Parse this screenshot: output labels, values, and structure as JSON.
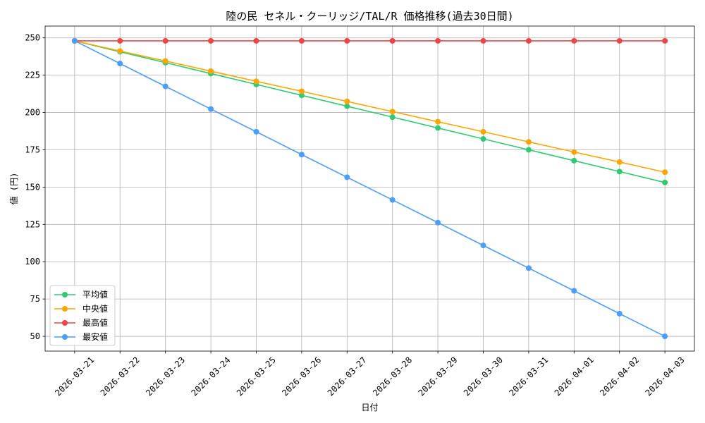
{
  "chart_data": {
    "type": "line",
    "title": "陸の民 セネル・クーリッジ/TAL/R 価格推移(過去30日間)",
    "xlabel": "日付",
    "ylabel": "値 (円)",
    "categories": [
      "2026-03-21",
      "2026-03-22",
      "2026-03-23",
      "2026-03-24",
      "2026-03-25",
      "2026-03-26",
      "2026-03-27",
      "2026-03-28",
      "2026-03-29",
      "2026-03-30",
      "2026-03-31",
      "2026-04-01",
      "2026-04-02",
      "2026-04-03"
    ],
    "yticks": [
      50,
      75,
      100,
      125,
      150,
      175,
      200,
      225,
      250
    ],
    "ylim": [
      40.1,
      257.9
    ],
    "grid": true,
    "legend_position": "lower-left",
    "series": [
      {
        "name": "平均値",
        "color": "#2ecc71",
        "values": [
          248,
          240.7,
          233.4,
          226.1,
          218.8,
          211.5,
          204.2,
          196.9,
          189.6,
          182.3,
          175.0,
          167.7,
          160.4,
          153.1
        ]
      },
      {
        "name": "中央値",
        "color": "#ffa500",
        "values": [
          248,
          241.2,
          234.5,
          227.7,
          220.9,
          214.2,
          207.4,
          200.6,
          193.8,
          187.1,
          180.3,
          173.5,
          166.8,
          160.0
        ]
      },
      {
        "name": "最高値",
        "color": "#ef4444",
        "values": [
          248,
          248,
          248,
          248,
          248,
          248,
          248,
          248,
          248,
          248,
          248,
          248,
          248,
          248
        ]
      },
      {
        "name": "最安値",
        "color": "#4a9eff",
        "values": [
          248,
          232.8,
          217.5,
          202.3,
          187.1,
          171.8,
          156.6,
          141.4,
          126.2,
          110.9,
          95.7,
          80.5,
          65.2,
          50.0
        ]
      }
    ]
  }
}
